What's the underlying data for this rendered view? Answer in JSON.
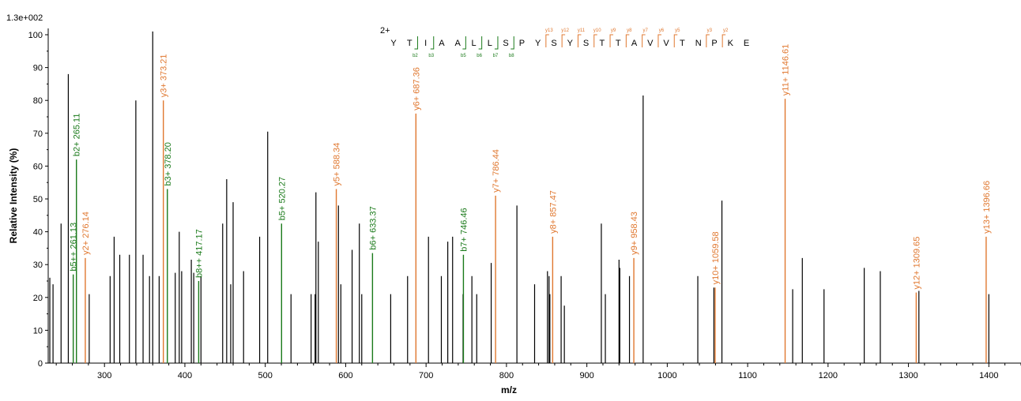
{
  "chart_data": {
    "type": "bar",
    "scale_label": "1.3e+002",
    "xlabel": "m/z",
    "ylabel": "Relative   Intensity (%)",
    "xlim": [
      230,
      1440
    ],
    "ylim": [
      0,
      100
    ],
    "x_ticks": [
      300,
      400,
      500,
      600,
      700,
      800,
      900,
      1000,
      1100,
      1200,
      1300,
      1400
    ],
    "y_ticks": [
      0,
      10,
      20,
      30,
      40,
      50,
      60,
      70,
      80,
      90,
      100
    ],
    "colors": {
      "unmatched": "#000000",
      "b_ion": "#1a7a1a",
      "y_ion": "#e07830",
      "charge": "#0000c0"
    },
    "unmatched_peaks": [
      {
        "x": 232,
        "y": 26
      },
      {
        "x": 236,
        "y": 24
      },
      {
        "x": 246,
        "y": 42.5
      },
      {
        "x": 255,
        "y": 88
      },
      {
        "x": 281,
        "y": 21
      },
      {
        "x": 307,
        "y": 26.5
      },
      {
        "x": 312,
        "y": 38.5
      },
      {
        "x": 319,
        "y": 33
      },
      {
        "x": 331,
        "y": 33
      },
      {
        "x": 339,
        "y": 80
      },
      {
        "x": 348,
        "y": 33
      },
      {
        "x": 356,
        "y": 26.5
      },
      {
        "x": 360,
        "y": 101
      },
      {
        "x": 368,
        "y": 26.5
      },
      {
        "x": 388,
        "y": 27.5
      },
      {
        "x": 393,
        "y": 40
      },
      {
        "x": 396,
        "y": 28
      },
      {
        "x": 408,
        "y": 31.5
      },
      {
        "x": 411,
        "y": 27.5
      },
      {
        "x": 420,
        "y": 26.5
      },
      {
        "x": 447,
        "y": 42.5
      },
      {
        "x": 452,
        "y": 56
      },
      {
        "x": 457,
        "y": 24
      },
      {
        "x": 460,
        "y": 49
      },
      {
        "x": 473,
        "y": 28
      },
      {
        "x": 493,
        "y": 38.5
      },
      {
        "x": 503,
        "y": 70.5
      },
      {
        "x": 532,
        "y": 21
      },
      {
        "x": 557,
        "y": 21
      },
      {
        "x": 562,
        "y": 21
      },
      {
        "x": 563,
        "y": 52
      },
      {
        "x": 566,
        "y": 37
      },
      {
        "x": 591,
        "y": 48
      },
      {
        "x": 594,
        "y": 24
      },
      {
        "x": 608,
        "y": 34.5
      },
      {
        "x": 617,
        "y": 42.5
      },
      {
        "x": 620,
        "y": 21
      },
      {
        "x": 656,
        "y": 21
      },
      {
        "x": 677,
        "y": 26.5
      },
      {
        "x": 703,
        "y": 38.5
      },
      {
        "x": 719,
        "y": 26.5
      },
      {
        "x": 727,
        "y": 37
      },
      {
        "x": 733,
        "y": 38.5
      },
      {
        "x": 746,
        "y": 21
      },
      {
        "x": 757,
        "y": 26.5
      },
      {
        "x": 763,
        "y": 21
      },
      {
        "x": 781,
        "y": 30.5
      },
      {
        "x": 813,
        "y": 48
      },
      {
        "x": 835,
        "y": 24
      },
      {
        "x": 851,
        "y": 28
      },
      {
        "x": 853,
        "y": 26.5
      },
      {
        "x": 854,
        "y": 21
      },
      {
        "x": 868,
        "y": 26.5
      },
      {
        "x": 872,
        "y": 17.5
      },
      {
        "x": 918,
        "y": 42.5
      },
      {
        "x": 923,
        "y": 21
      },
      {
        "x": 940,
        "y": 31.5
      },
      {
        "x": 941,
        "y": 29
      },
      {
        "x": 953,
        "y": 26.5
      },
      {
        "x": 970,
        "y": 81.5
      },
      {
        "x": 1038,
        "y": 26.5
      },
      {
        "x": 1058,
        "y": 23
      },
      {
        "x": 1068,
        "y": 49.5
      },
      {
        "x": 1156,
        "y": 22.5
      },
      {
        "x": 1168,
        "y": 32
      },
      {
        "x": 1195,
        "y": 22.5
      },
      {
        "x": 1245,
        "y": 29
      },
      {
        "x": 1265,
        "y": 28
      },
      {
        "x": 1313,
        "y": 22
      },
      {
        "x": 1400,
        "y": 21
      }
    ],
    "b_ions": [
      {
        "label": "b5++ 261.13",
        "x": 261.13,
        "y": 27,
        "dashed": true
      },
      {
        "label": "b2+ 265.11",
        "x": 265.11,
        "y": 62,
        "dashed": true
      },
      {
        "label": "b3+ 378.20",
        "x": 378.2,
        "y": 53
      },
      {
        "label": "b8++ 417.17",
        "x": 417.17,
        "y": 25,
        "dashed": true
      },
      {
        "label": "b5+ 520.27",
        "x": 520.27,
        "y": 42.5
      },
      {
        "label": "b6+ 633.37",
        "x": 633.37,
        "y": 33.5
      },
      {
        "label": "b7+ 746.46",
        "x": 746.46,
        "y": 33
      }
    ],
    "y_ions": [
      {
        "label": "y2+ 276.14",
        "x": 276.14,
        "y": 32
      },
      {
        "label": "y3+ 373.21",
        "x": 373.21,
        "y": 80
      },
      {
        "label": "y5+ 588.34",
        "x": 588.34,
        "y": 53
      },
      {
        "label": "y6+ 687.36",
        "x": 687.36,
        "y": 76
      },
      {
        "label": "y7+ 786.44",
        "x": 786.44,
        "y": 51
      },
      {
        "label": "y8+ 857.47",
        "x": 857.47,
        "y": 38.5
      },
      {
        "label": "y9+ 958.43",
        "x": 958.43,
        "y": 32
      },
      {
        "label": "y10+ 1059.58",
        "x": 1059.58,
        "y": 23
      },
      {
        "label": "y11+ 1146.61",
        "x": 1146.61,
        "y": 80.5
      },
      {
        "label": "y12+ 1309.65",
        "x": 1309.65,
        "y": 21.5
      },
      {
        "label": "y13+ 1396.66",
        "x": 1396.66,
        "y": 38.5
      }
    ],
    "peptide": {
      "charge": "2+",
      "sequence": [
        "Y",
        "T",
        "I",
        "A",
        "A",
        "L",
        "L",
        "S",
        "P",
        "Y",
        "S",
        "Y",
        "S",
        "T",
        "T",
        "A",
        "V",
        "V",
        "T",
        "N",
        "P",
        "K",
        "E"
      ],
      "b_marks": [
        {
          "after": 2,
          "label": "b2"
        },
        {
          "after": 3,
          "label": "b3"
        },
        {
          "after": 5,
          "label": "b5"
        },
        {
          "after": 6,
          "label": "b6"
        },
        {
          "after": 7,
          "label": "b7"
        },
        {
          "after": 8,
          "label": "b8"
        }
      ],
      "y_marks": [
        {
          "n": 13,
          "label": "y13"
        },
        {
          "n": 12,
          "label": "y12"
        },
        {
          "n": 11,
          "label": "y11"
        },
        {
          "n": 10,
          "label": "y10"
        },
        {
          "n": 9,
          "label": "y9"
        },
        {
          "n": 8,
          "label": "y8"
        },
        {
          "n": 7,
          "label": "y7"
        },
        {
          "n": 6,
          "label": "y6"
        },
        {
          "n": 5,
          "label": "y5"
        },
        {
          "n": 3,
          "label": "y3"
        },
        {
          "n": 2,
          "label": "y2"
        }
      ]
    }
  }
}
